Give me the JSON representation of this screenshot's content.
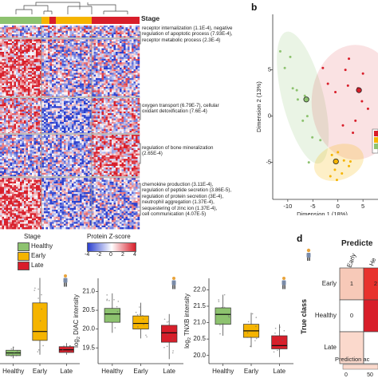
{
  "figure": {
    "panel_letters": [
      "b",
      "d"
    ],
    "stage_legend_title": "Stage",
    "stage_legend_items": [
      {
        "label": "Healthy",
        "color": "#8dc26f"
      },
      {
        "label": "Early",
        "color": "#f5b400"
      },
      {
        "label": "Late",
        "color": "#d81e2a"
      }
    ],
    "zscore_title": "Protein Z-score",
    "zscore_ticks": [
      "-4",
      "-2",
      "0",
      "2",
      "4"
    ],
    "colors": {
      "low": "#2a3fcf",
      "mid": "#ffffff",
      "high": "#d81e2a",
      "healthy": "#8dc26f",
      "early": "#f5b400",
      "late": "#d81e2a"
    }
  },
  "heatmap": {
    "stage_label": "Stage",
    "annotations": [
      {
        "lines": [
          "receptor internalization (1.1E-4), negative",
          "regulation of apoptotic process (7.93E-4),",
          "receptor metabolic process (2.3E-4)"
        ]
      },
      {
        "lines": [
          "oxygen transport (6.79E-7), cellular",
          "oxidant detoxification (7.6E-4)"
        ]
      },
      {
        "lines": [
          "regulation of bone mineralization",
          "(2.65E-4)"
        ]
      },
      {
        "lines": [
          "chemokine production (3.11E-4),",
          "regulation of peptide secretion (3.86E-5),",
          "regulation of protein secretion (3E-4),",
          "neutrophil aggregation (1.37E-4),",
          "sequestering of zinc ion (1.37E-4),",
          "cell communication (4.07E-5)"
        ]
      }
    ]
  },
  "pca": {
    "xlabel": "Dimension 1 (18%)",
    "ylabel": "Dimension 2 (13%)",
    "xticks": [
      "-10",
      "-5",
      "0",
      "5"
    ],
    "yticks": [
      "5",
      "0",
      "-5"
    ]
  },
  "boxplots": [
    {
      "ylabel_prefix": "",
      "ylabel_sub": "",
      "ylabel_name": "",
      "categories": [
        "Healthy",
        "Early",
        "Late"
      ],
      "yticks": []
    },
    {
      "ylabel_prefix": "log",
      "ylabel_sub": "2",
      "ylabel_name": " DIAC intensity",
      "categories": [
        "Healthy",
        "Early",
        "Late"
      ],
      "yticks": [
        "21.0",
        "20.5",
        "20.0",
        "19.5"
      ]
    },
    {
      "ylabel_prefix": "log",
      "ylabel_sub": "2",
      "ylabel_name": " TNXB intensity",
      "categories": [
        "Healthy",
        "Early",
        "Late"
      ],
      "yticks": [
        "22.0",
        "21.5",
        "21.0",
        "20.5",
        "20.0"
      ]
    }
  ],
  "confusion": {
    "title": "Predicte",
    "ylabel": "True class",
    "row_labels": [
      "Early",
      "Healthy",
      "Late"
    ],
    "col_labels": [
      "Early",
      "He"
    ],
    "cells": [
      [
        "1",
        "2"
      ],
      [
        "0",
        ""
      ],
      [
        "",
        ""
      ]
    ],
    "legend_title": "Prediction ac",
    "legend_ticks": [
      "0",
      "50"
    ]
  },
  "chart_data": [
    {
      "type": "scatter",
      "title": "",
      "xlabel": "Dimension 1 (18%)",
      "ylabel": "Dimension 2 (13%)",
      "xlim": [
        -13,
        8
      ],
      "ylim": [
        -9,
        11
      ],
      "series": [
        {
          "name": "Healthy",
          "color": "#8dc26f",
          "points": [
            [
              -11.5,
              7
            ],
            [
              -10.6,
              5.2
            ],
            [
              -9.5,
              6.4
            ],
            [
              -9,
              3
            ],
            [
              -8.2,
              2.8
            ],
            [
              -8,
              1.8
            ],
            [
              -7,
              -0.5
            ],
            [
              -6.6,
              2.2
            ],
            [
              -6.1,
              0
            ],
            [
              -5.1,
              -2.3
            ],
            [
              -3.5,
              -2.6
            ],
            [
              -5.8,
              -5
            ]
          ]
        },
        {
          "name": "Early",
          "color": "#f5b400",
          "points": [
            [
              -1.2,
              -4.2
            ],
            [
              -0.6,
              -5.8
            ],
            [
              0,
              -3.9
            ],
            [
              0.8,
              -6.2
            ],
            [
              -1.5,
              -6.5
            ],
            [
              2.2,
              -5.4
            ],
            [
              1.2,
              -4.8
            ],
            [
              -0.2,
              -6.9
            ],
            [
              2.5,
              -4.9
            ]
          ]
        },
        {
          "name": "Late",
          "color": "#d81e2a",
          "points": [
            [
              -3,
              5.2
            ],
            [
              -2,
              3.5
            ],
            [
              -0.5,
              2.6
            ],
            [
              1.5,
              5
            ],
            [
              2,
              3.3
            ],
            [
              3.5,
              -0.5
            ],
            [
              4,
              3
            ],
            [
              4.8,
              1.6
            ],
            [
              5,
              4.6
            ],
            [
              6,
              0.8
            ],
            [
              3,
              -1.8
            ],
            [
              1,
              -1
            ],
            [
              2.2,
              6.2
            ]
          ]
        }
      ],
      "centroids": [
        {
          "series": "Healthy",
          "point": [
            -6.3,
            1.8
          ]
        },
        {
          "series": "Early",
          "point": [
            -0.4,
            -4.9
          ]
        },
        {
          "series": "Late",
          "point": [
            4.2,
            2.8
          ]
        }
      ]
    },
    {
      "type": "box",
      "title": "",
      "ylabel": "",
      "categories": [
        "Healthy",
        "Early",
        "Late"
      ],
      "ylim": [
        0,
        10
      ],
      "boxes": [
        {
          "q1": 0.9,
          "median": 1.2,
          "q3": 1.5,
          "lo": 0.6,
          "hi": 1.9
        },
        {
          "q1": 2.6,
          "median": 3.6,
          "q3": 6.8,
          "lo": 1.0,
          "hi": 9.6
        },
        {
          "q1": 1.25,
          "median": 1.55,
          "q3": 1.9,
          "lo": 1.0,
          "hi": 2.3
        }
      ]
    },
    {
      "type": "box",
      "title": "",
      "ylabel": "log2 DIAC intensity",
      "categories": [
        "Healthy",
        "Early",
        "Late"
      ],
      "ylim": [
        19.08,
        21.35
      ],
      "boxes": [
        {
          "q1": 20.18,
          "median": 20.4,
          "q3": 20.55,
          "lo": 19.9,
          "hi": 20.95
        },
        {
          "q1": 20.0,
          "median": 20.15,
          "q3": 20.35,
          "lo": 19.75,
          "hi": 20.7
        },
        {
          "q1": 19.65,
          "median": 19.9,
          "q3": 20.1,
          "lo": 19.2,
          "hi": 20.4
        }
      ]
    },
    {
      "type": "box",
      "title": "",
      "ylabel": "log2 TNXB intensity",
      "categories": [
        "Healthy",
        "Early",
        "Late"
      ],
      "ylim": [
        19.75,
        22.35
      ],
      "boxes": [
        {
          "q1": 20.95,
          "median": 21.25,
          "q3": 21.45,
          "lo": 20.6,
          "hi": 21.85
        },
        {
          "q1": 20.55,
          "median": 20.75,
          "q3": 20.95,
          "lo": 20.25,
          "hi": 21.3
        },
        {
          "q1": 20.2,
          "median": 20.3,
          "q3": 20.6,
          "lo": 19.95,
          "hi": 20.95
        }
      ]
    }
  ]
}
